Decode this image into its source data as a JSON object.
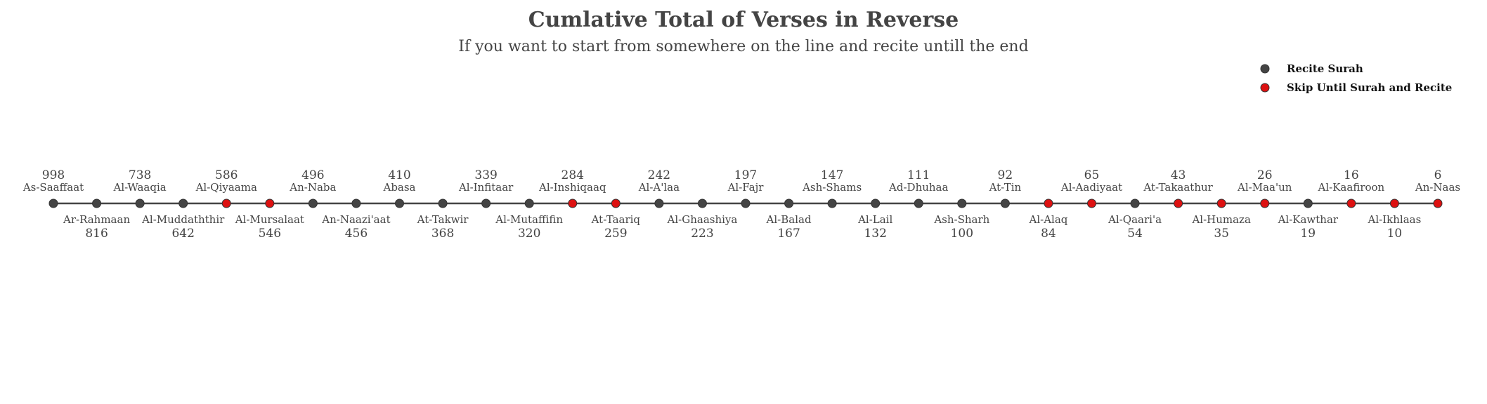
{
  "chart_data": {
    "type": "scatter",
    "title": "Cumlative Total of Verses in Reverse",
    "subtitle": "If you want to start from somewhere on the line and recite untill the end",
    "legend": {
      "placement": "top-right",
      "entries": [
        {
          "key": "recite",
          "label": "Recite Surah",
          "color": "#444444"
        },
        {
          "key": "skip",
          "label": "Skip Until Surah and Recite",
          "color": "#dd1111"
        }
      ]
    },
    "line_color": "#444444",
    "points": [
      {
        "surah": "As-Saaffaat",
        "value": 998,
        "status": "recite"
      },
      {
        "surah": "Ar-Rahmaan",
        "value": 816,
        "status": "recite"
      },
      {
        "surah": "Al-Waaqia",
        "value": 738,
        "status": "recite"
      },
      {
        "surah": "Al-Muddaththir",
        "value": 642,
        "status": "recite"
      },
      {
        "surah": "Al-Qiyaama",
        "value": 586,
        "status": "skip"
      },
      {
        "surah": "Al-Mursalaat",
        "value": 546,
        "status": "skip"
      },
      {
        "surah": "An-Naba",
        "value": 496,
        "status": "recite"
      },
      {
        "surah": "An-Naazi'aat",
        "value": 456,
        "status": "recite"
      },
      {
        "surah": "Abasa",
        "value": 410,
        "status": "recite"
      },
      {
        "surah": "At-Takwir",
        "value": 368,
        "status": "recite"
      },
      {
        "surah": "Al-Infitaar",
        "value": 339,
        "status": "recite"
      },
      {
        "surah": "Al-Mutaffifin",
        "value": 320,
        "status": "recite"
      },
      {
        "surah": "Al-Inshiqaaq",
        "value": 284,
        "status": "skip"
      },
      {
        "surah": "At-Taariq",
        "value": 259,
        "status": "skip"
      },
      {
        "surah": "Al-A'laa",
        "value": 242,
        "status": "recite"
      },
      {
        "surah": "Al-Ghaashiya",
        "value": 223,
        "status": "recite"
      },
      {
        "surah": "Al-Fajr",
        "value": 197,
        "status": "recite"
      },
      {
        "surah": "Al-Balad",
        "value": 167,
        "status": "recite"
      },
      {
        "surah": "Ash-Shams",
        "value": 147,
        "status": "recite"
      },
      {
        "surah": "Al-Lail",
        "value": 132,
        "status": "recite"
      },
      {
        "surah": "Ad-Dhuhaa",
        "value": 111,
        "status": "recite"
      },
      {
        "surah": "Ash-Sharh",
        "value": 100,
        "status": "recite"
      },
      {
        "surah": "At-Tin",
        "value": 92,
        "status": "recite"
      },
      {
        "surah": "Al-Alaq",
        "value": 84,
        "status": "skip"
      },
      {
        "surah": "Al-Aadiyaat",
        "value": 65,
        "status": "skip"
      },
      {
        "surah": "Al-Qaari'a",
        "value": 54,
        "status": "recite"
      },
      {
        "surah": "At-Takaathur",
        "value": 43,
        "status": "skip"
      },
      {
        "surah": "Al-Humaza",
        "value": 35,
        "status": "skip"
      },
      {
        "surah": "Al-Maa'un",
        "value": 26,
        "status": "skip"
      },
      {
        "surah": "Al-Kawthar",
        "value": 19,
        "status": "recite"
      },
      {
        "surah": "Al-Kaafiroon",
        "value": 16,
        "status": "skip"
      },
      {
        "surah": "Al-Ikhlaas",
        "value": 10,
        "status": "skip"
      },
      {
        "surah": "An-Naas",
        "value": 6,
        "status": "skip"
      }
    ]
  }
}
